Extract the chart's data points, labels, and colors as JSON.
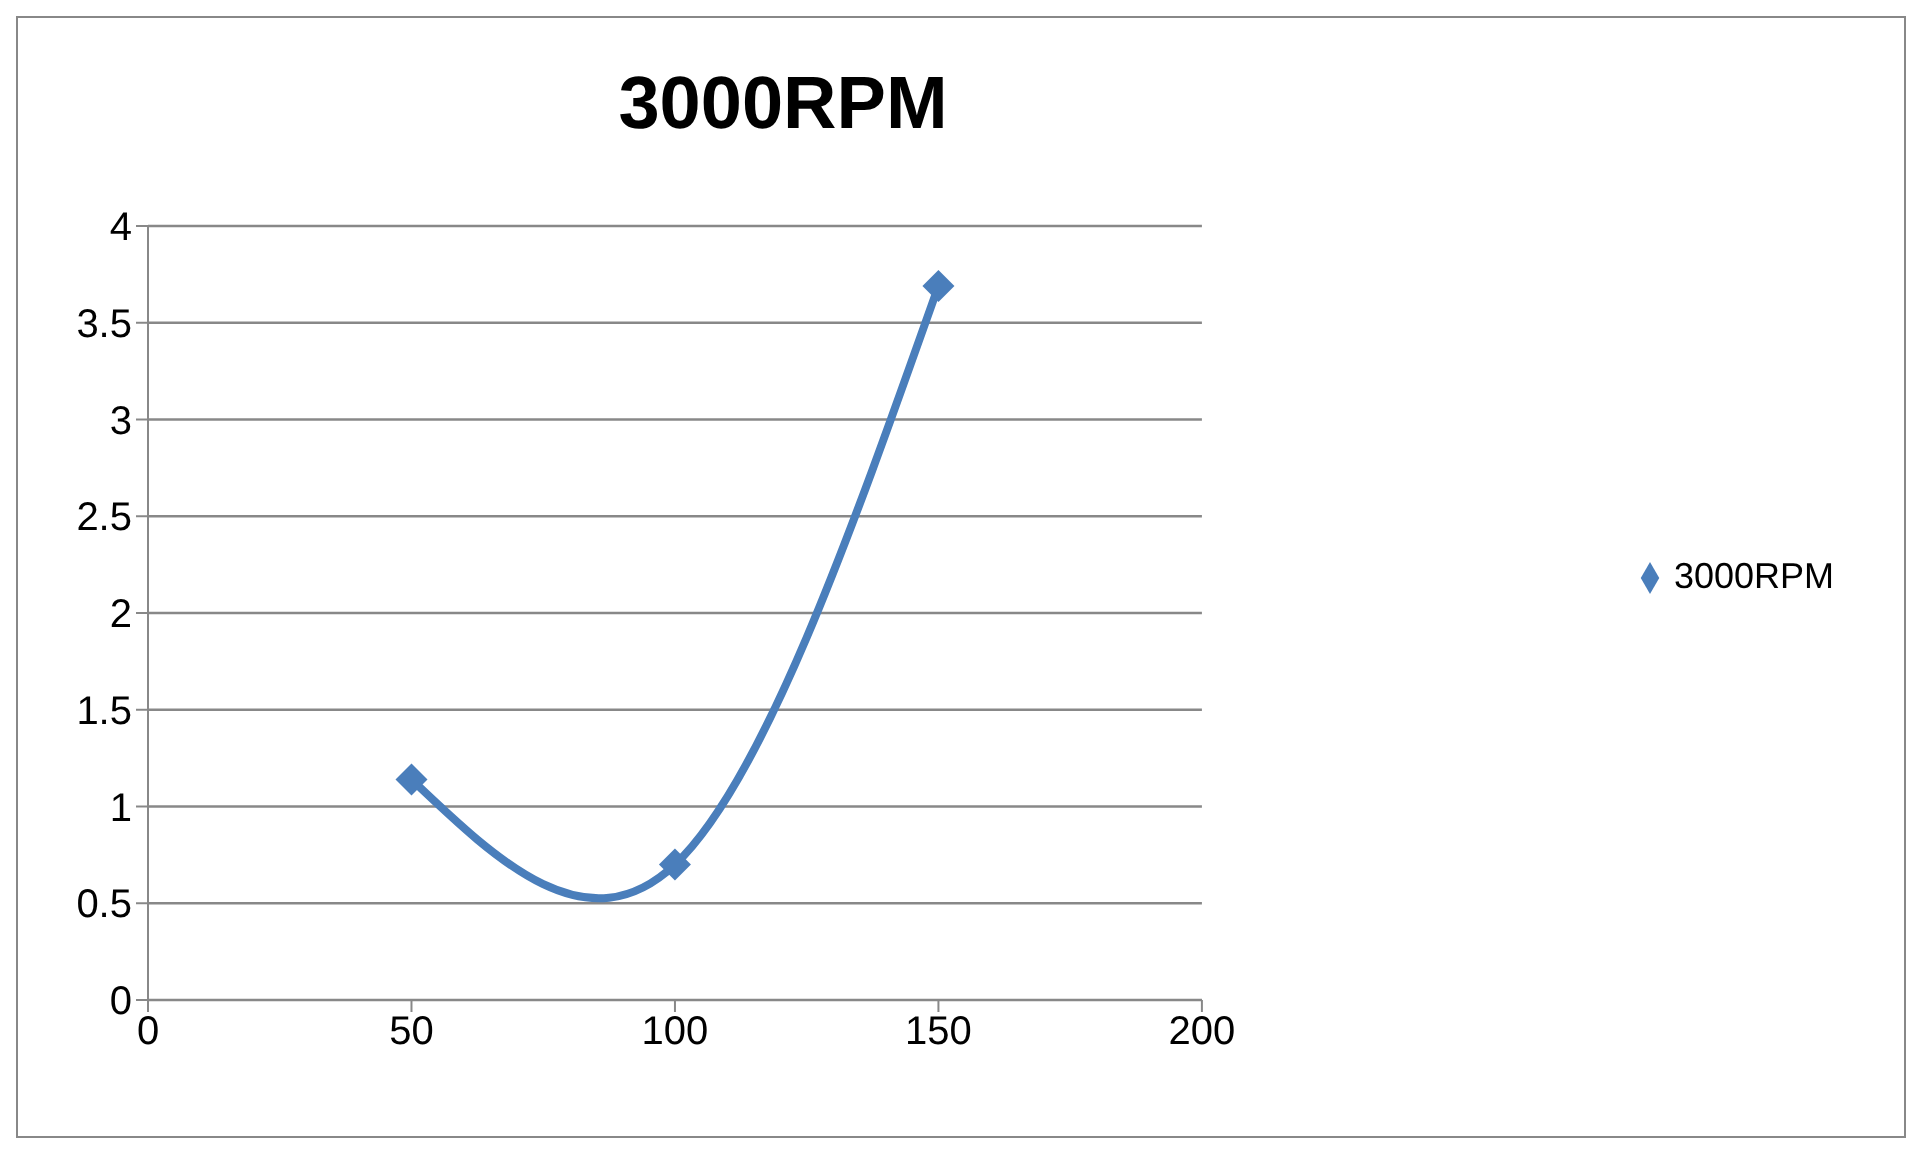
{
  "chart_data": {
    "type": "line",
    "title": "3000RPM",
    "x": [
      50,
      100,
      150
    ],
    "series": [
      {
        "name": "3000RPM",
        "color": "#4a7ebb",
        "values": [
          1.14,
          0.7,
          3.69
        ]
      }
    ],
    "xlim": [
      0,
      200
    ],
    "xticks": [
      0,
      50,
      100,
      150,
      200
    ],
    "ylim": [
      0,
      4
    ],
    "yticks": [
      0,
      0.5,
      1,
      1.5,
      2,
      2.5,
      3,
      3.5,
      4
    ],
    "grid": "y",
    "legend": "right",
    "marker": "diamond",
    "line_style": "solid"
  }
}
